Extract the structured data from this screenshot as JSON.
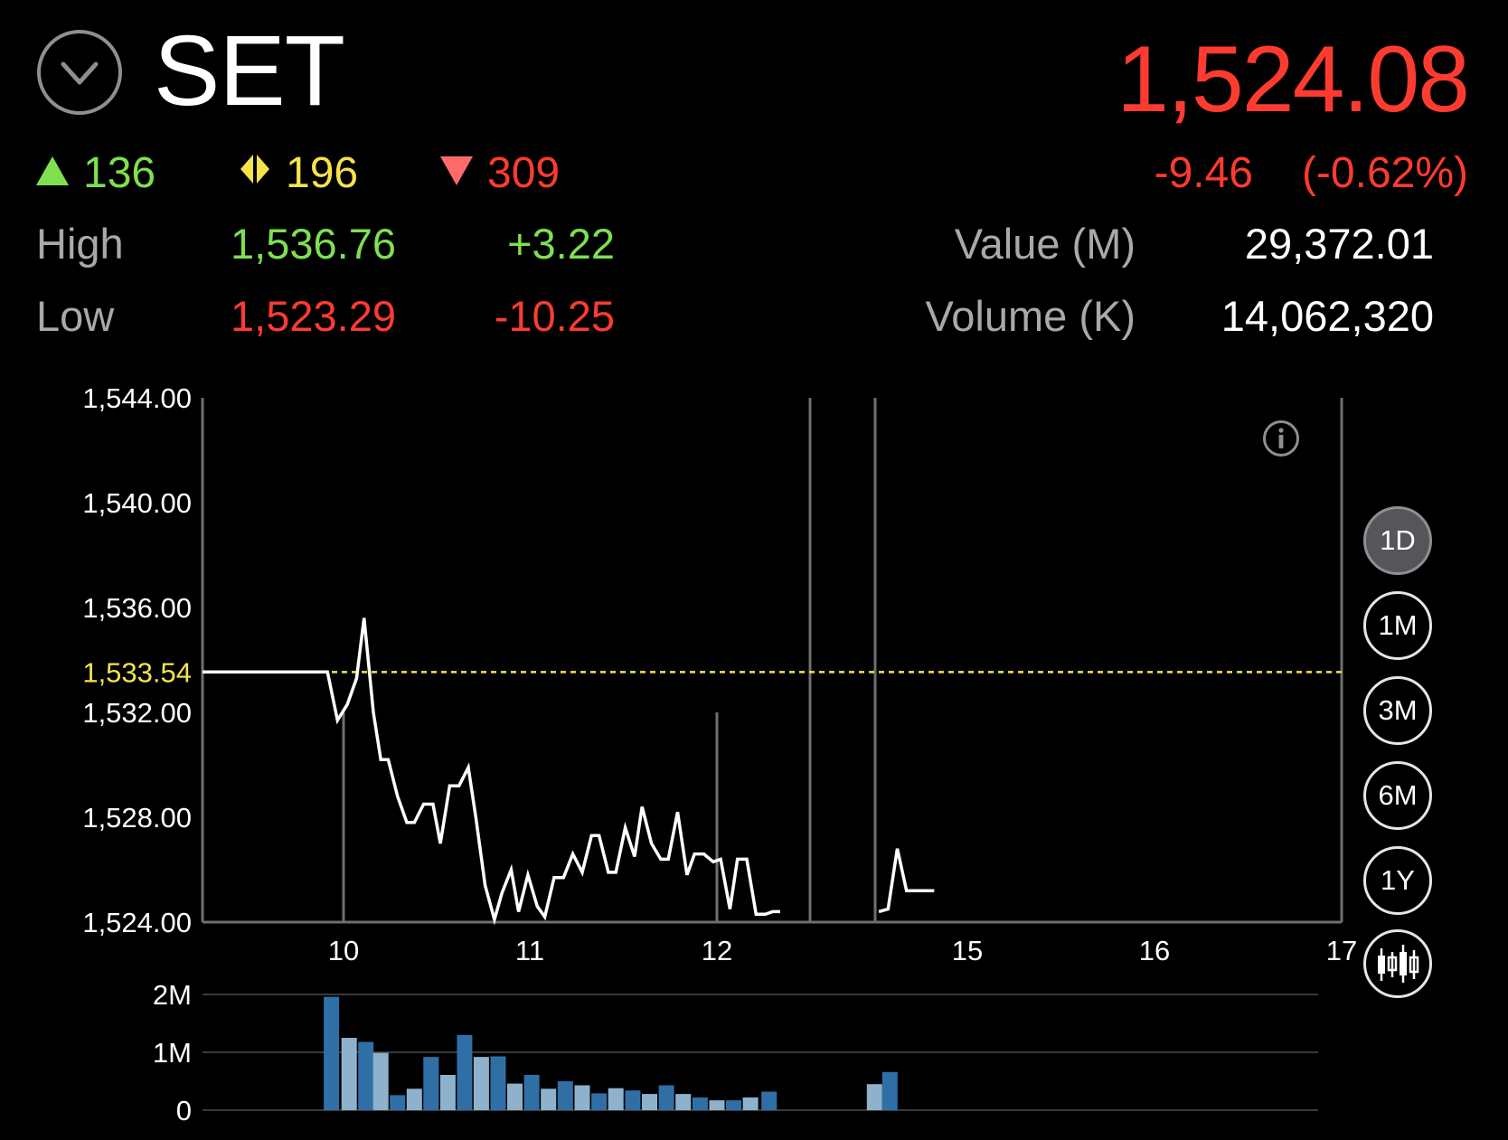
{
  "header": {
    "symbol": "SET",
    "last_price": "1,524.08",
    "change": "-9.46",
    "change_pct": "(-0.62%)",
    "collapse_icon": "chevron-down-circle-icon"
  },
  "breadth": {
    "advances": "136",
    "unchanged": "196",
    "declines": "309",
    "advance_color": "#7ee04f",
    "unchanged_color": "#f6e34a",
    "decline_color": "#ff3b30"
  },
  "stats": {
    "high_label": "High",
    "high_value": "1,536.76",
    "high_change": "+3.22",
    "low_label": "Low",
    "low_value": "1,523.29",
    "low_change": "-10.25",
    "value_label": "Value (M)",
    "value_value": "29,372.01",
    "volume_label": "Volume (K)",
    "volume_value": "14,062,320"
  },
  "periods": [
    "1D",
    "1M",
    "3M",
    "6M",
    "1Y"
  ],
  "active_period": "1D",
  "icons": {
    "info": "info-icon",
    "candlestick": "candlestick-icon"
  },
  "chart_data": {
    "type": "line",
    "y_ticks": [
      "1,544.00",
      "1,540.00",
      "1,536.00",
      "1,532.00",
      "1,528.00",
      "1,524.00"
    ],
    "y_tick_values": [
      1544,
      1540,
      1536,
      1532,
      1528,
      1524
    ],
    "ylim": [
      1524,
      1544
    ],
    "x_ticks": [
      "10",
      "11",
      "12",
      "15",
      "16",
      "17"
    ],
    "prev_close_label": "1,533.54",
    "prev_close": 1533.54,
    "prev_close_color": "#f6e34a",
    "line_color": "#ffffff",
    "price_series": [
      [
        9.3,
        1533.54
      ],
      [
        9.92,
        1533.54
      ],
      [
        9.97,
        1531.7
      ],
      [
        10.02,
        1532.3
      ],
      [
        10.07,
        1533.3
      ],
      [
        10.11,
        1535.6
      ],
      [
        10.16,
        1532.0
      ],
      [
        10.2,
        1530.2
      ],
      [
        10.24,
        1530.2
      ],
      [
        10.29,
        1528.8
      ],
      [
        10.34,
        1527.8
      ],
      [
        10.38,
        1527.8
      ],
      [
        10.43,
        1528.5
      ],
      [
        10.48,
        1528.5
      ],
      [
        10.52,
        1527.0
      ],
      [
        10.57,
        1529.2
      ],
      [
        10.62,
        1529.2
      ],
      [
        10.67,
        1529.9
      ],
      [
        10.71,
        1528.0
      ],
      [
        10.76,
        1525.4
      ],
      [
        10.81,
        1524.1
      ],
      [
        10.85,
        1525.1
      ],
      [
        10.9,
        1526.0
      ],
      [
        10.94,
        1524.4
      ],
      [
        10.99,
        1525.8
      ],
      [
        11.04,
        1524.6
      ],
      [
        11.08,
        1524.2
      ],
      [
        11.13,
        1525.7
      ],
      [
        11.18,
        1525.7
      ],
      [
        11.23,
        1526.6
      ],
      [
        11.28,
        1525.9
      ],
      [
        11.33,
        1527.3
      ],
      [
        11.37,
        1527.3
      ],
      [
        11.42,
        1525.9
      ],
      [
        11.46,
        1525.9
      ],
      [
        11.51,
        1527.6
      ],
      [
        11.56,
        1526.5
      ],
      [
        11.6,
        1528.4
      ],
      [
        11.65,
        1527.0
      ],
      [
        11.7,
        1526.4
      ],
      [
        11.74,
        1526.4
      ],
      [
        11.79,
        1528.2
      ],
      [
        11.84,
        1525.8
      ],
      [
        11.88,
        1526.6
      ],
      [
        11.93,
        1526.6
      ],
      [
        11.98,
        1526.3
      ],
      [
        12.02,
        1526.4
      ],
      [
        12.07,
        1524.5
      ],
      [
        12.11,
        1526.4
      ],
      [
        12.16,
        1526.4
      ],
      [
        12.21,
        1524.3
      ],
      [
        12.26,
        1524.3
      ],
      [
        12.3,
        1524.4
      ],
      [
        12.34,
        1524.4
      ],
      null,
      [
        14.52,
        1524.4
      ],
      [
        14.57,
        1524.5
      ],
      [
        14.62,
        1526.8
      ],
      [
        14.67,
        1525.2
      ],
      [
        14.72,
        1525.2
      ],
      [
        14.77,
        1525.2
      ],
      [
        14.82,
        1525.2
      ]
    ],
    "volume_ticks": [
      "2M",
      "1M",
      "0"
    ],
    "volume_tick_values": [
      2000000,
      1000000,
      0
    ],
    "volume_series": [
      [
        9.94,
        1960000
      ],
      [
        10.03,
        1250000
      ],
      [
        10.12,
        1180000
      ],
      [
        10.2,
        990000
      ],
      [
        10.29,
        260000
      ],
      [
        10.38,
        370000
      ],
      [
        10.47,
        920000
      ],
      [
        10.56,
        610000
      ],
      [
        10.65,
        1300000
      ],
      [
        10.74,
        920000
      ],
      [
        10.83,
        930000
      ],
      [
        10.92,
        460000
      ],
      [
        11.01,
        610000
      ],
      [
        11.1,
        370000
      ],
      [
        11.19,
        500000
      ],
      [
        11.28,
        430000
      ],
      [
        11.37,
        290000
      ],
      [
        11.46,
        380000
      ],
      [
        11.55,
        340000
      ],
      [
        11.64,
        280000
      ],
      [
        11.73,
        430000
      ],
      [
        11.82,
        280000
      ],
      [
        11.91,
        220000
      ],
      [
        12.0,
        170000
      ],
      [
        12.09,
        170000
      ],
      [
        12.18,
        220000
      ],
      [
        12.28,
        320000
      ],
      [
        14.48,
        450000
      ],
      [
        14.58,
        660000
      ]
    ],
    "volume_colors": [
      "#2f6fa6",
      "#8fb2cc"
    ],
    "grid": true
  }
}
